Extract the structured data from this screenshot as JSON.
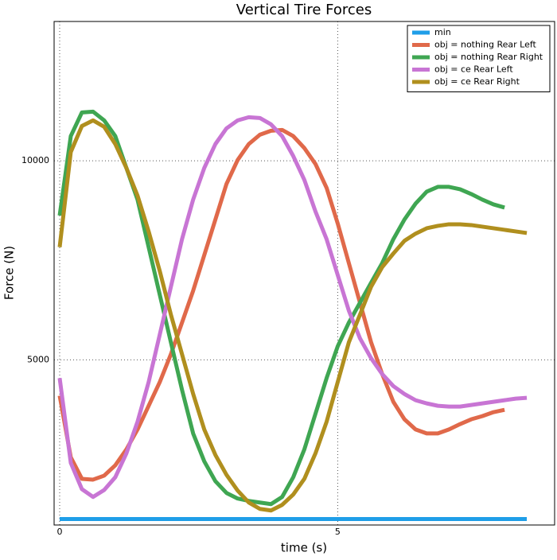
{
  "chart_data": {
    "type": "line",
    "title": "Vertical Tire Forces",
    "xlabel": "time (s)",
    "ylabel": "Force (N)",
    "x": [
      0,
      0.2,
      0.4,
      0.6,
      0.8,
      1.0,
      1.2,
      1.4,
      1.6,
      1.8,
      2.0,
      2.2,
      2.4,
      2.6,
      2.8,
      3.0,
      3.2,
      3.4,
      3.6,
      3.8,
      4.0,
      4.2,
      4.4,
      4.6,
      4.8,
      5.0,
      5.2,
      5.4,
      5.6,
      5.8,
      6.0,
      6.2,
      6.4,
      6.6,
      6.8,
      7.0,
      7.2,
      7.4,
      7.6,
      7.8,
      8.0,
      8.2,
      8.4
    ],
    "series": [
      {
        "name": "min",
        "color": "#1f9ee8",
        "values": [
          1000,
          1000,
          1000,
          1000,
          1000,
          1000,
          1000,
          1000,
          1000,
          1000,
          1000,
          1000,
          1000,
          1000,
          1000,
          1000,
          1000,
          1000,
          1000,
          1000,
          1000,
          1000,
          1000,
          1000,
          1000,
          1000,
          1000,
          1000,
          1000,
          1000,
          1000,
          1000,
          1000,
          1000,
          1000,
          1000,
          1000,
          1000,
          1000,
          1000,
          1000,
          1000,
          1000
        ]
      },
      {
        "name": "obj = nothing Rear Left",
        "color": "#e0694a",
        "values": [
          4100,
          2550,
          2010,
          1990,
          2090,
          2350,
          2750,
          3250,
          3845,
          4440,
          5140,
          5935,
          6735,
          7630,
          8525,
          9420,
          10020,
          10420,
          10655,
          10755,
          10775,
          10620,
          10320,
          9920,
          9320,
          8425,
          7430,
          6435,
          5440,
          4640,
          3945,
          3505,
          3250,
          3150,
          3150,
          3250,
          3385,
          3505,
          3585,
          3685,
          3745,
          null,
          null
        ]
      },
      {
        "name": "obj = nothing Rear Right",
        "color": "#3fa652",
        "values": [
          8625,
          10620,
          11215,
          11235,
          11015,
          10620,
          9820,
          9025,
          7830,
          6635,
          5440,
          4245,
          3150,
          2450,
          1950,
          1655,
          1515,
          1455,
          1415,
          1375,
          1555,
          2050,
          2750,
          3645,
          4540,
          5340,
          5935,
          6435,
          6935,
          7430,
          8030,
          8525,
          8925,
          9225,
          9345,
          9345,
          9285,
          9165,
          9025,
          8905,
          8825,
          null,
          null
        ]
      },
      {
        "name": "obj = ce Rear Left",
        "color": "#c875d4",
        "values": [
          4540,
          2410,
          1750,
          1555,
          1730,
          2050,
          2650,
          3445,
          4440,
          5635,
          6835,
          8030,
          9025,
          9820,
          10420,
          10815,
          11015,
          11095,
          11075,
          10915,
          10620,
          10120,
          9520,
          8725,
          8030,
          7130,
          6235,
          5540,
          5040,
          4640,
          4340,
          4140,
          3985,
          3905,
          3845,
          3825,
          3825,
          3865,
          3905,
          3945,
          3985,
          4025,
          4045
        ]
      },
      {
        "name": "obj = ce Rear Right",
        "color": "#b08f1e",
        "values": [
          7830,
          10220,
          10875,
          11015,
          10855,
          10420,
          9820,
          9125,
          8225,
          7230,
          6135,
          5140,
          4145,
          3250,
          2610,
          2110,
          1715,
          1415,
          1255,
          1215,
          1355,
          1615,
          2010,
          2650,
          3445,
          4440,
          5440,
          6135,
          6835,
          7330,
          7670,
          7990,
          8170,
          8305,
          8365,
          8405,
          8405,
          8385,
          8345,
          8305,
          8265,
          8225,
          8185
        ]
      }
    ],
    "xlim": [
      -0.1,
      8.9
    ],
    "ylim": [
      850,
      13500
    ],
    "xticks": [
      0,
      5
    ],
    "yticks": [
      5000,
      10000
    ],
    "grid": true,
    "legend": "upper right"
  }
}
